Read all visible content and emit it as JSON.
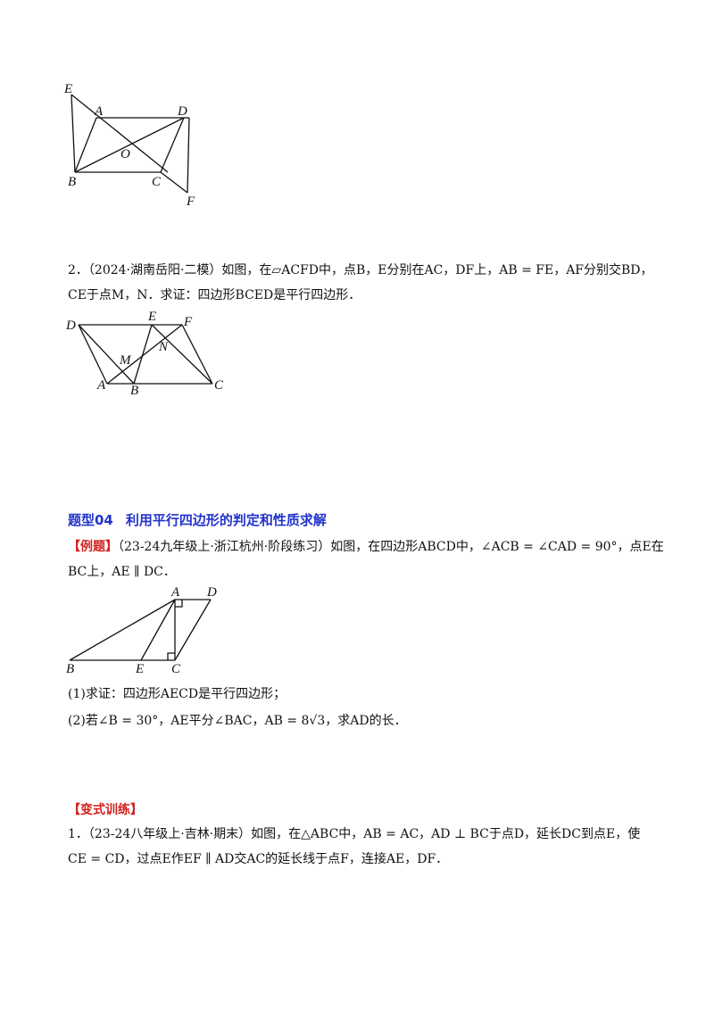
{
  "figure1": {
    "labels": {
      "E": "E",
      "A": "A",
      "D": "D",
      "O": "O",
      "B": "B",
      "C": "C",
      "F": "F"
    }
  },
  "problem2": {
    "line1": "2．（2024·湖南岳阳·二模）如图，在▱ACFD中，点B，E分别在AC，DF上，AB = FE，AF分别交BD，",
    "line2": "CE于点M，N．求证：四边形BCED是平行四边形．"
  },
  "figure2": {
    "labels": {
      "D": "D",
      "E": "E",
      "F": "F",
      "M": "M",
      "N": "N",
      "A": "A",
      "B": "B",
      "C": "C"
    }
  },
  "section": {
    "number": "题型04",
    "title": "利用平行四边形的判定和性质求解"
  },
  "example": {
    "tag": "【例题】",
    "line1": "（23-24九年级上·浙江杭州·阶段练习）如图，在四边形ABCD中，∠ACB = ∠CAD = 90°，点E在",
    "line2": "BC上，AE ∥ DC．"
  },
  "figure3": {
    "labels": {
      "A": "A",
      "D": "D",
      "B": "B",
      "E": "E",
      "C": "C"
    }
  },
  "questions": {
    "q1": "(1)求证：四边形AECD是平行四边形；",
    "q2": "(2)若∠B = 30°，AE平分∠BAC，AB = 8√3，求AD的长．"
  },
  "practice": {
    "tag": "【变式训练】",
    "line1": "1．（23-24八年级上·吉林·期末）如图，在△ABC中，AB = AC，AD ⊥ BC于点D，延长DC到点E，使",
    "line2": "CE = CD，过点E作EF ∥ AD交AC的延长线于点F，连接AE，DF．"
  }
}
